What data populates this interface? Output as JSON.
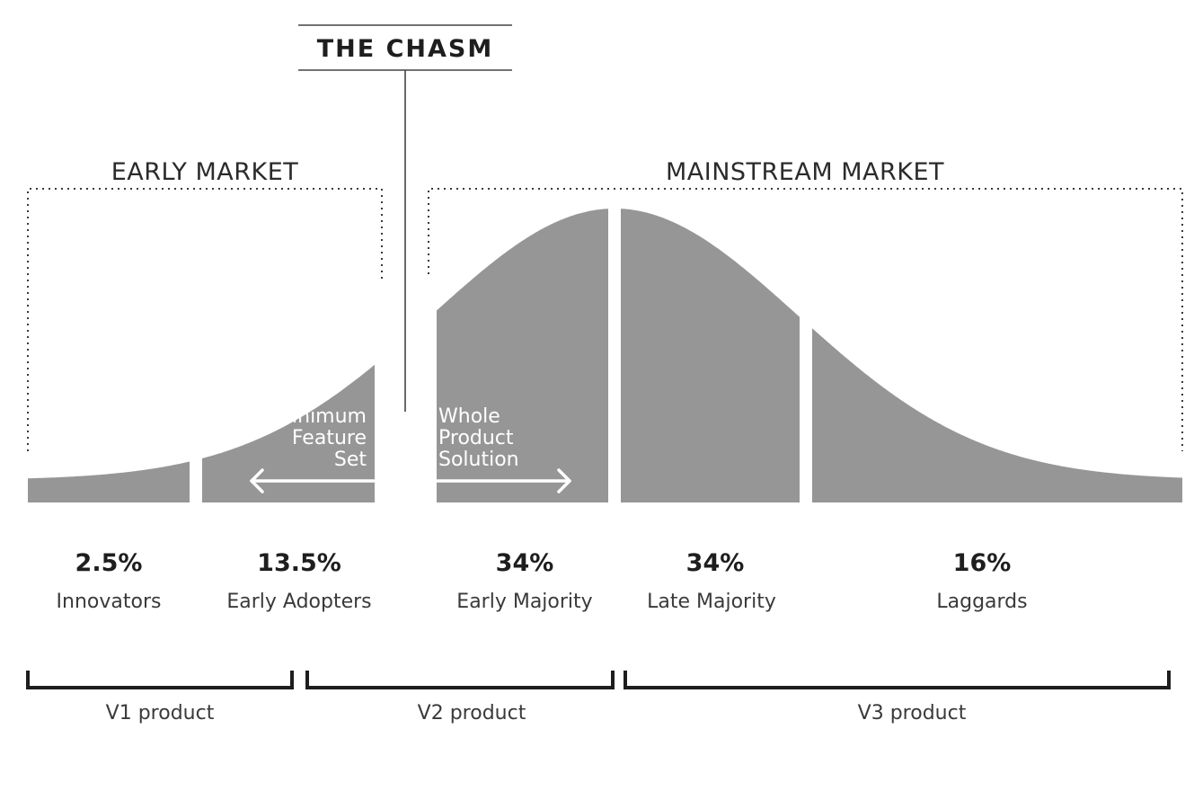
{
  "title": "THE CHASM",
  "markets": {
    "early": "EARLY MARKET",
    "mainstream": "MAINSTREAM MARKET"
  },
  "annotations": {
    "minimum_feature_set": [
      "Minimum",
      "Feature",
      "Set"
    ],
    "whole_product_solution": [
      "Whole",
      "Product",
      "Solution"
    ]
  },
  "segments": [
    {
      "percent": "2.5%",
      "label": "Innovators",
      "share": 2.5
    },
    {
      "percent": "13.5%",
      "label": "Early Adopters",
      "share": 13.5
    },
    {
      "percent": "34%",
      "label": "Early Majority",
      "share": 34
    },
    {
      "percent": "34%",
      "label": "Late Majority",
      "share": 34
    },
    {
      "percent": "16%",
      "label": "Laggards",
      "share": 16
    }
  ],
  "products": [
    "V1 product",
    "V2 product",
    "V3 product"
  ],
  "colors": {
    "curve_fill": "#969696",
    "text_dark": "#1e1e1e",
    "background": "#ffffff"
  }
}
